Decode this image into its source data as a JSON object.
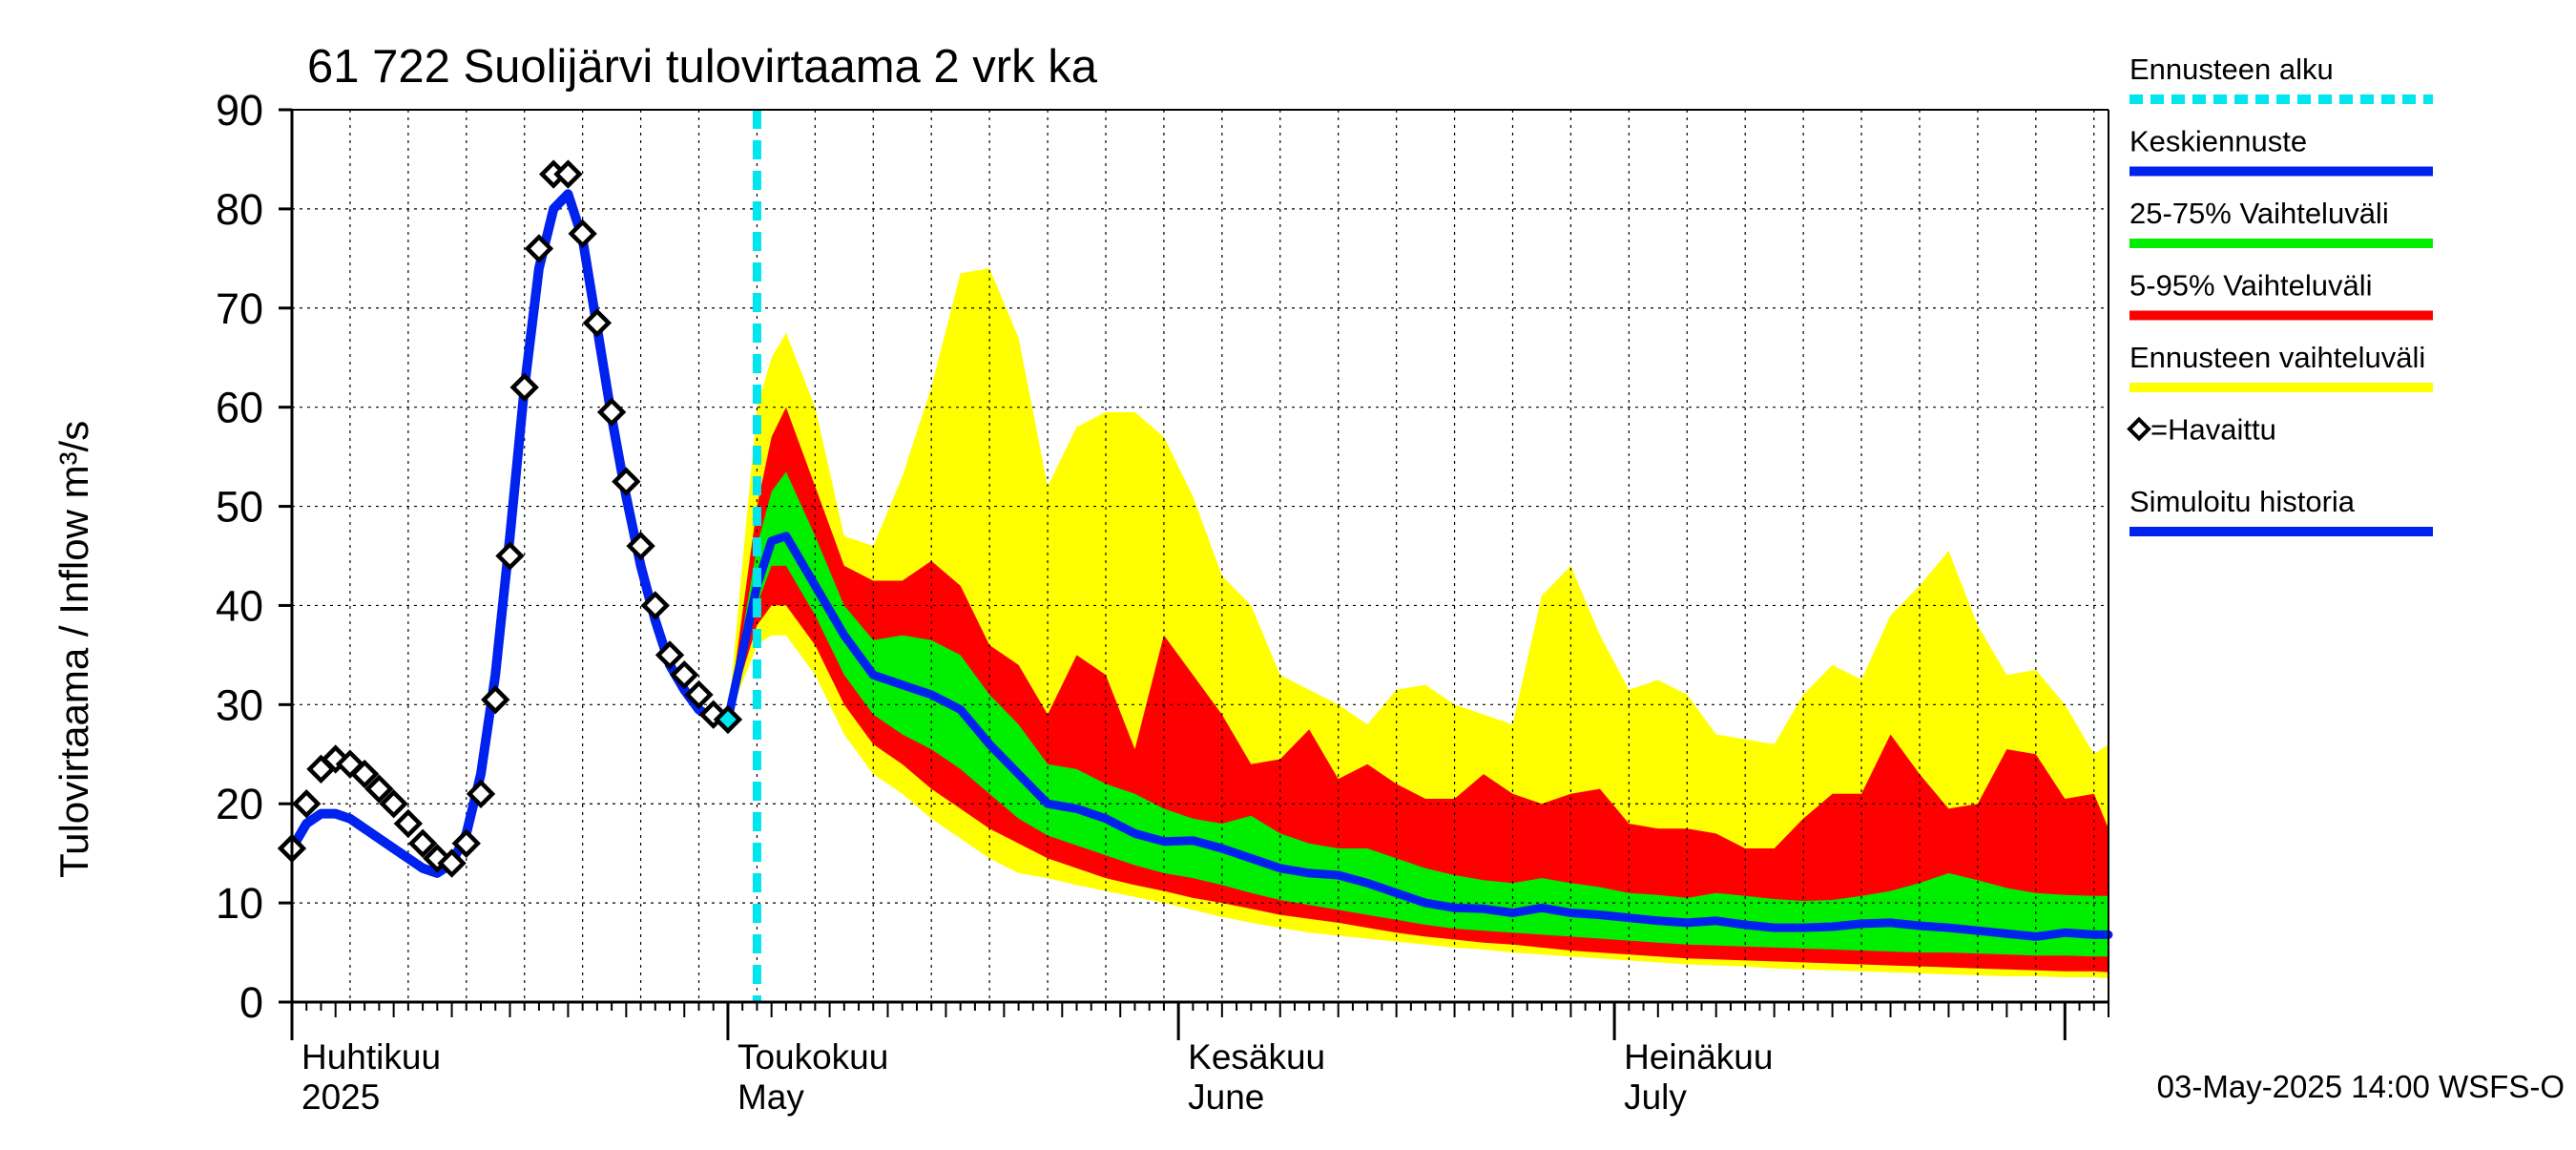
{
  "chart_data": {
    "type": "area",
    "title": "61 722 Suolijärvi tulovirtaama 2 vrk ka",
    "ylabel": "Tulovirtaama / Inflow    m³/s",
    "ylim": [
      0,
      90
    ],
    "yticks": [
      0,
      10,
      20,
      30,
      40,
      50,
      60,
      70,
      80,
      90
    ],
    "xlim": [
      "2025-04-01",
      "2025-08-04"
    ],
    "forecast_start": "2025-05-03",
    "grid": true,
    "legend_position": "right",
    "month_labels": [
      {
        "date": "2025-04-01",
        "fi": "Huhtikuu",
        "en": "2025"
      },
      {
        "date": "2025-05-01",
        "fi": "Toukokuu",
        "en": "May"
      },
      {
        "date": "2025-06-01",
        "fi": "Kesäkuu",
        "en": "June"
      },
      {
        "date": "2025-07-01",
        "fi": "Heinäkuu",
        "en": "July"
      }
    ],
    "footer": "03-May-2025 14:00 WSFS-O",
    "colors": {
      "forecast_start": "#00e5ee",
      "median": "#0022ee",
      "band_25_75": "#00ee00",
      "band_5_95": "#ff0000",
      "band_full": "#ffff00",
      "history": "#0022ee",
      "observed": "#000000"
    },
    "legend": [
      {
        "label": "Ennusteen alku",
        "key": "forecast_start",
        "style": "dashed"
      },
      {
        "label": "Keskiennuste",
        "key": "median",
        "style": "line"
      },
      {
        "label": "25-75% Vaihteluväli",
        "key": "band_25_75",
        "style": "line"
      },
      {
        "label": "5-95% Vaihteluväli",
        "key": "band_5_95",
        "style": "line"
      },
      {
        "label": "Ennusteen vaihteluväli",
        "key": "band_full",
        "style": "line"
      },
      {
        "label": "=Havaittu",
        "key": "observed",
        "style": "marker"
      },
      {
        "label": "Simuloitu historia",
        "key": "history",
        "style": "line"
      }
    ],
    "observed": [
      [
        "2025-04-01",
        15.5
      ],
      [
        "2025-04-02",
        20
      ],
      [
        "2025-04-03",
        23.5
      ],
      [
        "2025-04-04",
        24.5
      ],
      [
        "2025-04-05",
        24
      ],
      [
        "2025-04-06",
        23
      ],
      [
        "2025-04-07",
        21.5
      ],
      [
        "2025-04-08",
        20
      ],
      [
        "2025-04-09",
        18
      ],
      [
        "2025-04-10",
        16
      ],
      [
        "2025-04-11",
        14.5
      ],
      [
        "2025-04-12",
        14
      ],
      [
        "2025-04-13",
        16
      ],
      [
        "2025-04-14",
        21
      ],
      [
        "2025-04-15",
        30.5
      ],
      [
        "2025-04-16",
        45
      ],
      [
        "2025-04-17",
        62
      ],
      [
        "2025-04-18",
        76
      ],
      [
        "2025-04-19",
        83.5
      ],
      [
        "2025-04-20",
        83.5
      ],
      [
        "2025-04-21",
        77.5
      ],
      [
        "2025-04-22",
        68.5
      ],
      [
        "2025-04-23",
        59.5
      ],
      [
        "2025-04-24",
        52.5
      ],
      [
        "2025-04-25",
        46
      ],
      [
        "2025-04-26",
        40
      ],
      [
        "2025-04-27",
        35
      ],
      [
        "2025-04-28",
        33
      ],
      [
        "2025-04-29",
        31
      ],
      [
        "2025-04-30",
        29
      ],
      [
        "2025-05-01",
        28.5
      ]
    ],
    "history": [
      [
        "2025-04-01",
        15.5
      ],
      [
        "2025-04-02",
        18
      ],
      [
        "2025-04-03",
        19
      ],
      [
        "2025-04-04",
        19
      ],
      [
        "2025-04-05",
        18.5
      ],
      [
        "2025-04-06",
        17.5
      ],
      [
        "2025-04-07",
        16.5
      ],
      [
        "2025-04-08",
        15.5
      ],
      [
        "2025-04-09",
        14.5
      ],
      [
        "2025-04-10",
        13.5
      ],
      [
        "2025-04-11",
        13
      ],
      [
        "2025-04-12",
        14
      ],
      [
        "2025-04-13",
        17
      ],
      [
        "2025-04-14",
        23
      ],
      [
        "2025-04-15",
        33
      ],
      [
        "2025-04-16",
        47
      ],
      [
        "2025-04-17",
        62
      ],
      [
        "2025-04-18",
        74
      ],
      [
        "2025-04-19",
        80
      ],
      [
        "2025-04-20",
        81.5
      ],
      [
        "2025-04-21",
        77
      ],
      [
        "2025-04-22",
        68
      ],
      [
        "2025-04-23",
        59
      ],
      [
        "2025-04-24",
        51
      ],
      [
        "2025-04-25",
        44
      ],
      [
        "2025-04-26",
        38.5
      ],
      [
        "2025-04-27",
        34
      ],
      [
        "2025-04-28",
        31.5
      ],
      [
        "2025-04-29",
        29.5
      ],
      [
        "2025-04-30",
        28.5
      ],
      [
        "2025-05-01",
        28.5
      ]
    ],
    "forecast": {
      "x": [
        "2025-05-01",
        "2025-05-03",
        "2025-05-04",
        "2025-05-05",
        "2025-05-07",
        "2025-05-09",
        "2025-05-11",
        "2025-05-13",
        "2025-05-15",
        "2025-05-17",
        "2025-05-19",
        "2025-05-21",
        "2025-05-23",
        "2025-05-25",
        "2025-05-27",
        "2025-05-29",
        "2025-05-31",
        "2025-06-02",
        "2025-06-04",
        "2025-06-06",
        "2025-06-08",
        "2025-06-10",
        "2025-06-12",
        "2025-06-14",
        "2025-06-16",
        "2025-06-18",
        "2025-06-20",
        "2025-06-22",
        "2025-06-24",
        "2025-06-26",
        "2025-06-28",
        "2025-06-30",
        "2025-07-02",
        "2025-07-04",
        "2025-07-06",
        "2025-07-08",
        "2025-07-10",
        "2025-07-12",
        "2025-07-14",
        "2025-07-16",
        "2025-07-18",
        "2025-07-20",
        "2025-07-22",
        "2025-07-24",
        "2025-07-26",
        "2025-07-28",
        "2025-07-30",
        "2025-08-01",
        "2025-08-03",
        "2025-08-04"
      ],
      "median": [
        28.5,
        42,
        46.5,
        47,
        42,
        37,
        33,
        32,
        31,
        29.5,
        26,
        23,
        20,
        19.5,
        18.5,
        17,
        16.2,
        16.3,
        15.5,
        14.5,
        13.5,
        13,
        12.8,
        12,
        11,
        10,
        9.5,
        9.4,
        9,
        9.5,
        9,
        8.8,
        8.5,
        8.2,
        8,
        8.2,
        7.8,
        7.5,
        7.5,
        7.6,
        7.9,
        8,
        7.7,
        7.5,
        7.2,
        6.9,
        6.6,
        7,
        6.8,
        6.8
      ],
      "p25": [
        28.5,
        40,
        44,
        44,
        39,
        33,
        29,
        27,
        25.5,
        23.5,
        21,
        18.5,
        16.8,
        15.8,
        14.8,
        13.8,
        13,
        12.5,
        11.8,
        11,
        10.3,
        9.8,
        9.3,
        8.8,
        8.3,
        7.8,
        7.4,
        7.2,
        7,
        6.8,
        6.6,
        6.4,
        6.2,
        6,
        5.8,
        5.7,
        5.6,
        5.5,
        5.4,
        5.3,
        5.2,
        5.1,
        5,
        5,
        4.9,
        4.8,
        4.7,
        4.7,
        4.6,
        4.6
      ],
      "p75": [
        28.5,
        46,
        51.5,
        53.5,
        47,
        40,
        36.5,
        37,
        36.5,
        35,
        31,
        28,
        24,
        23.5,
        22,
        21,
        19.5,
        18.5,
        18,
        18.8,
        17,
        16,
        15.5,
        15.5,
        14.5,
        13.5,
        12.8,
        12.3,
        12,
        12.5,
        12,
        11.6,
        11,
        10.8,
        10.5,
        11,
        10.7,
        10.4,
        10.2,
        10.3,
        10.7,
        11.2,
        12,
        13,
        12.3,
        11.5,
        11,
        10.8,
        10.7,
        10.7
      ],
      "p5": [
        28.5,
        38,
        40,
        40,
        36,
        30,
        26,
        24,
        21.5,
        19.5,
        17.5,
        16,
        14.5,
        13.5,
        12.5,
        11.8,
        11.2,
        10.5,
        10,
        9.4,
        8.8,
        8.4,
        8,
        7.5,
        7,
        6.6,
        6.3,
        6,
        5.8,
        5.5,
        5.2,
        5,
        4.8,
        4.6,
        4.4,
        4.3,
        4.2,
        4.1,
        4,
        3.9,
        3.8,
        3.7,
        3.6,
        3.5,
        3.4,
        3.3,
        3.2,
        3.1,
        3.1,
        3
      ],
      "p95": [
        28.5,
        50,
        57,
        60,
        52,
        44,
        42.5,
        42.5,
        44.5,
        42,
        36,
        34,
        29,
        35,
        33,
        25.5,
        37,
        33,
        29,
        24,
        24.5,
        27.5,
        22.5,
        24,
        22,
        20.5,
        20.5,
        23,
        21,
        20,
        21,
        21.5,
        18,
        17.5,
        17.5,
        17,
        15.5,
        15.5,
        18.5,
        21,
        21,
        27,
        23,
        19.5,
        20,
        25.5,
        25,
        20.5,
        21,
        17.5
      ],
      "min": [
        28.5,
        36,
        37,
        37,
        33,
        27,
        23,
        21,
        18.5,
        16.5,
        14.5,
        13,
        12.5,
        11.8,
        11.2,
        10.6,
        10,
        9.3,
        8.6,
        8,
        7.5,
        7,
        6.7,
        6.4,
        6.1,
        5.8,
        5.5,
        5.3,
        5,
        4.8,
        4.6,
        4.4,
        4.2,
        4,
        3.8,
        3.7,
        3.6,
        3.4,
        3.3,
        3.2,
        3.1,
        3,
        2.9,
        2.8,
        2.7,
        2.6,
        2.6,
        2.5,
        2.5,
        2.4
      ],
      "max": [
        28.5,
        60,
        65,
        67.5,
        60,
        47,
        46,
        53,
        62,
        73.5,
        74,
        67,
        52,
        58,
        59.5,
        59.5,
        57,
        51,
        43,
        40,
        33,
        31.5,
        30,
        28,
        31.5,
        32,
        30,
        29,
        28,
        41,
        44,
        37,
        31.5,
        32.5,
        31,
        27,
        26.5,
        26,
        31,
        34,
        32.5,
        39,
        42,
        45.5,
        38,
        33,
        33.5,
        30,
        25,
        26
      ]
    }
  }
}
